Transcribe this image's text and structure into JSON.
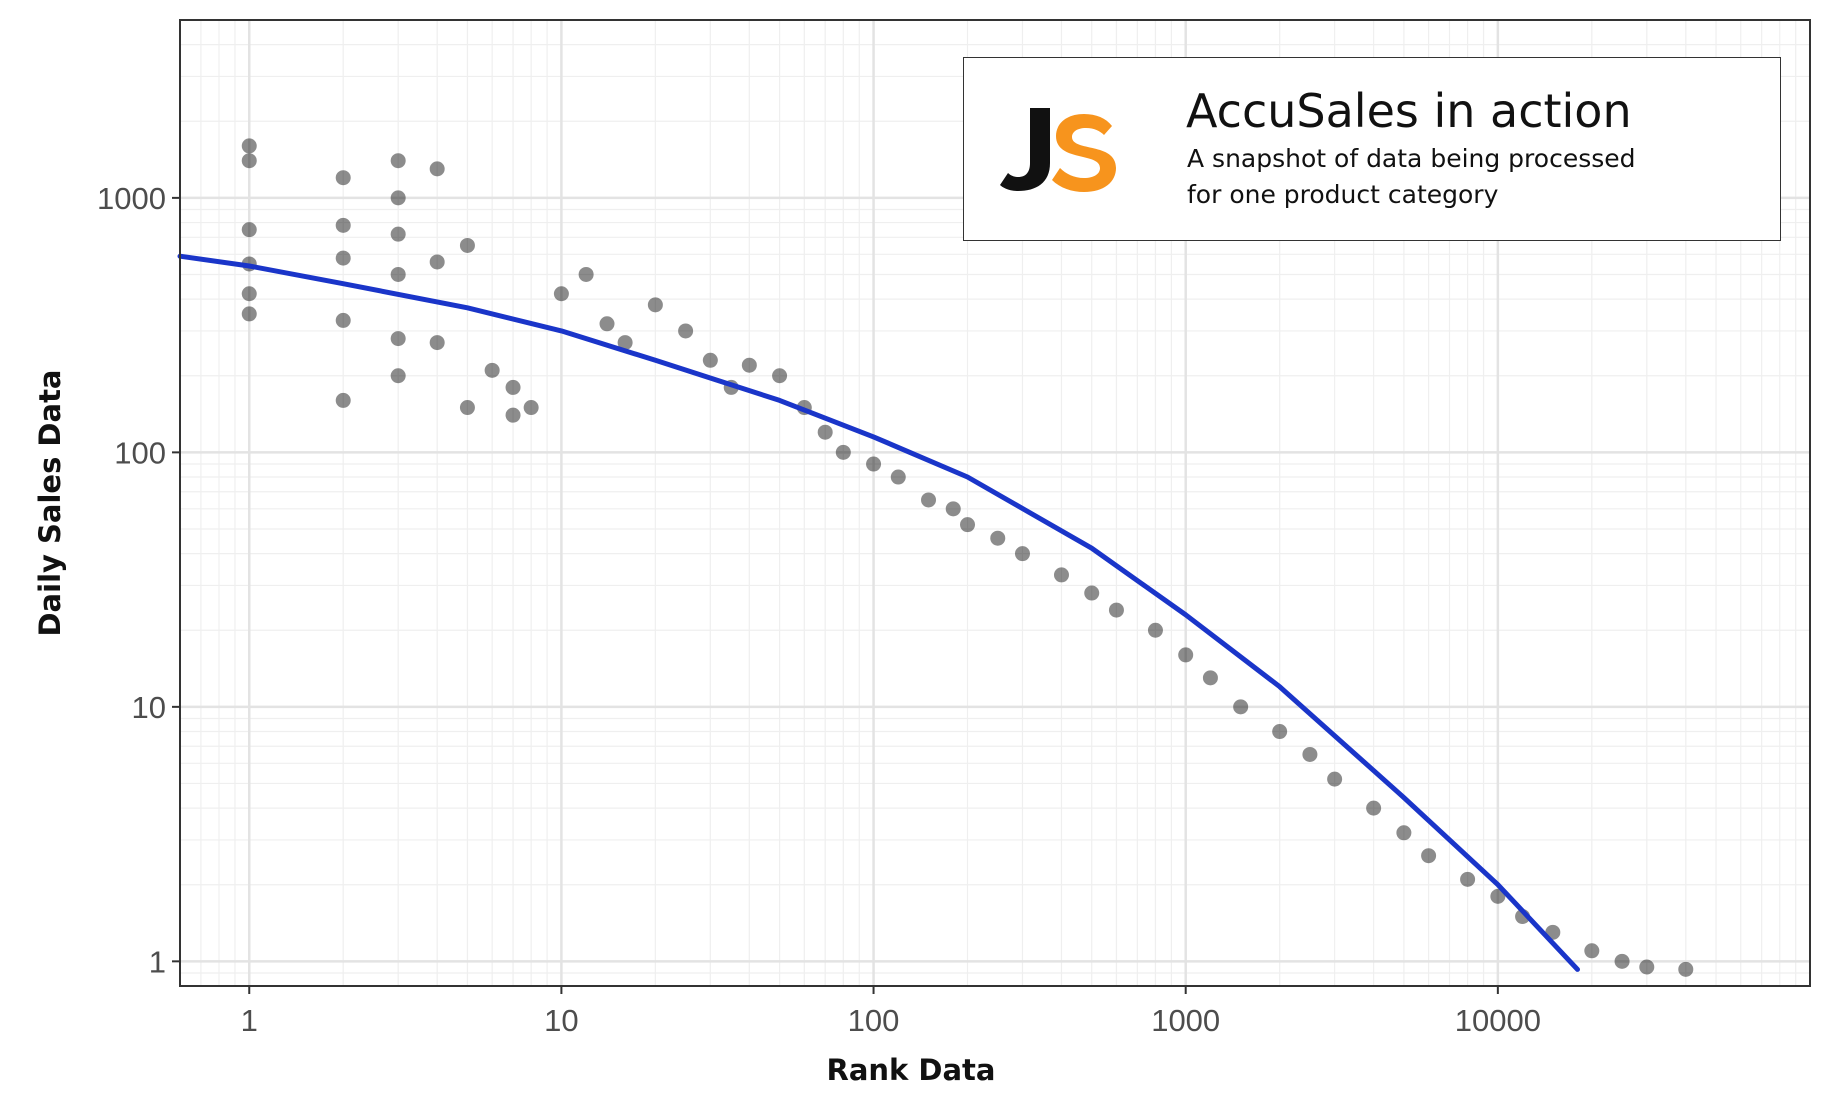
{
  "chart_data": {
    "type": "scatter",
    "xlabel": "Rank Data",
    "ylabel": "Daily Sales Data",
    "x_scale": "log",
    "y_scale": "log",
    "xlim": [
      0.6,
      100000
    ],
    "ylim": [
      0.8,
      5000
    ],
    "x_ticks": [
      1,
      10,
      100,
      1000,
      10000
    ],
    "x_tick_labels": [
      "1",
      "10",
      "100",
      "1000",
      "10000"
    ],
    "y_ticks": [
      1,
      10,
      100,
      1000
    ],
    "y_tick_labels": [
      "1",
      "10",
      "100",
      "1000"
    ],
    "grid": true,
    "point_color": "#000000",
    "fit_color": "#1a35c9",
    "series": [
      {
        "name": "",
        "kind": "scatter",
        "x": [
          1,
          1,
          1,
          1,
          1,
          1,
          2,
          2,
          2,
          2,
          2,
          3,
          3,
          3,
          3,
          3,
          3,
          4,
          4,
          4,
          5,
          5,
          6,
          7,
          7,
          8,
          10,
          12,
          14,
          16,
          20,
          25,
          30,
          35,
          40,
          50,
          60,
          70,
          80,
          100,
          120,
          150,
          180,
          200,
          250,
          300,
          400,
          500,
          600,
          800,
          1000,
          1200,
          1500,
          2000,
          2500,
          3000,
          4000,
          5000,
          6000,
          8000,
          10000,
          12000,
          15000,
          20000,
          25000,
          30000,
          40000
        ],
        "y": [
          1600,
          1400,
          750,
          550,
          420,
          350,
          1200,
          780,
          580,
          330,
          160,
          1400,
          1000,
          720,
          500,
          280,
          200,
          1300,
          560,
          270,
          650,
          150,
          210,
          180,
          140,
          150,
          420,
          500,
          320,
          270,
          380,
          300,
          230,
          180,
          220,
          200,
          150,
          120,
          100,
          90,
          80,
          65,
          60,
          52,
          46,
          40,
          33,
          28,
          24,
          20,
          16,
          13,
          10,
          8,
          6.5,
          5.2,
          4,
          3.2,
          2.6,
          2.1,
          1.8,
          1.5,
          1.3,
          1.1,
          1.0,
          0.95,
          0.93
        ]
      },
      {
        "name": "",
        "kind": "fit",
        "x": [
          0.6,
          1,
          2,
          5,
          10,
          20,
          50,
          100,
          200,
          500,
          1000,
          2000,
          5000,
          10000,
          18000
        ],
        "y": [
          590,
          540,
          460,
          370,
          300,
          230,
          160,
          115,
          80,
          42,
          23,
          12,
          4.4,
          2.0,
          0.93
        ]
      }
    ]
  },
  "legend": {
    "title": "AccuSales in action",
    "subtitle_line1": "A snapshot of data being processed",
    "subtitle_line2": "for one product category",
    "logo_icon": "js-logo-icon",
    "logo_colors": {
      "j": "#111111",
      "s": "#f7941d"
    }
  }
}
